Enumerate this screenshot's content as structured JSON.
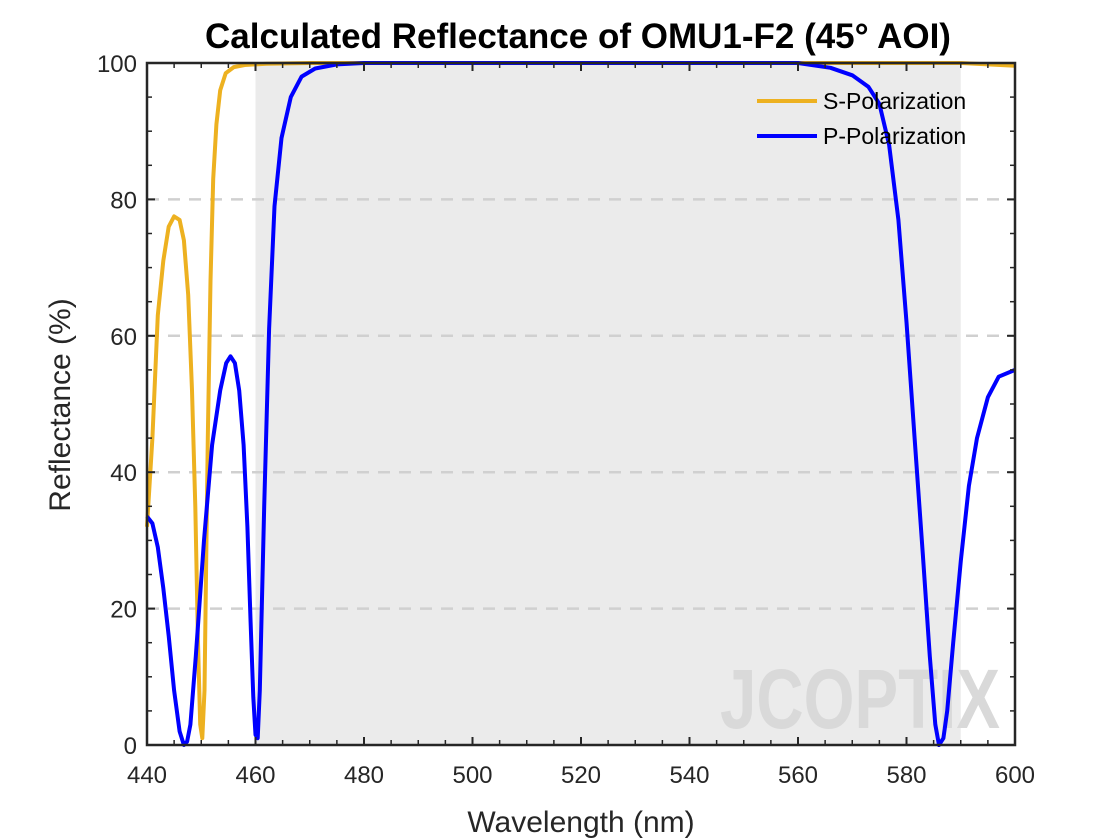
{
  "chart_data": {
    "type": "line",
    "title": "Calculated Reflectance of OMU1-F2 (45° AOI)",
    "xlabel": "Wavelength (nm)",
    "ylabel": "Reflectance (%)",
    "xlim": [
      440,
      600
    ],
    "ylim": [
      0,
      100
    ],
    "xticks": [
      440,
      460,
      480,
      500,
      520,
      540,
      560,
      580,
      600
    ],
    "yticks": [
      0,
      20,
      40,
      60,
      80,
      100
    ],
    "grid": "horizontal-dashed",
    "highlight_band": [
      460,
      590
    ],
    "legend_position": "top-right",
    "watermark": "JCOPTIX",
    "series": [
      {
        "name": "S-Polarization",
        "color": "#EDB120",
        "points": [
          [
            440,
            32
          ],
          [
            441,
            45
          ],
          [
            442,
            63
          ],
          [
            443,
            71
          ],
          [
            444,
            76
          ],
          [
            445,
            77.5
          ],
          [
            446,
            77
          ],
          [
            446.8,
            74
          ],
          [
            447.6,
            66
          ],
          [
            448.3,
            52
          ],
          [
            448.9,
            35
          ],
          [
            449.4,
            15
          ],
          [
            449.8,
            3
          ],
          [
            450.2,
            1
          ],
          [
            450.6,
            8
          ],
          [
            451.2,
            45
          ],
          [
            451.7,
            68
          ],
          [
            452.2,
            83
          ],
          [
            452.8,
            91
          ],
          [
            453.5,
            96
          ],
          [
            454.5,
            98.5
          ],
          [
            456,
            99.4
          ],
          [
            458,
            99.7
          ],
          [
            462,
            99.9
          ],
          [
            470,
            100
          ],
          [
            500,
            100
          ],
          [
            560,
            100
          ],
          [
            590,
            100
          ],
          [
            600,
            99.6
          ]
        ]
      },
      {
        "name": "P-Polarization",
        "color": "#0000FF",
        "points": [
          [
            440,
            33.5
          ],
          [
            441,
            32.5
          ],
          [
            442,
            29
          ],
          [
            443,
            23
          ],
          [
            444,
            16
          ],
          [
            445,
            8
          ],
          [
            446,
            2
          ],
          [
            446.8,
            0
          ],
          [
            447.4,
            0.5
          ],
          [
            448,
            3
          ],
          [
            449,
            13
          ],
          [
            450.5,
            30
          ],
          [
            452,
            44
          ],
          [
            453.5,
            52
          ],
          [
            454.6,
            56
          ],
          [
            455.4,
            57
          ],
          [
            456.2,
            56
          ],
          [
            457,
            52
          ],
          [
            457.8,
            44
          ],
          [
            458.5,
            32
          ],
          [
            459.1,
            18
          ],
          [
            459.6,
            7
          ],
          [
            460,
            1.5
          ],
          [
            460.4,
            1
          ],
          [
            460.8,
            8
          ],
          [
            461.6,
            35
          ],
          [
            462.5,
            61
          ],
          [
            463.5,
            79
          ],
          [
            464.8,
            89
          ],
          [
            466.5,
            95
          ],
          [
            468.5,
            98
          ],
          [
            471,
            99.2
          ],
          [
            475,
            99.8
          ],
          [
            480,
            100
          ],
          [
            560,
            100
          ],
          [
            566,
            99.3
          ],
          [
            570,
            98.2
          ],
          [
            573,
            96.5
          ],
          [
            575,
            94
          ],
          [
            576.8,
            88
          ],
          [
            578.5,
            77
          ],
          [
            580,
            62
          ],
          [
            581.5,
            45
          ],
          [
            583,
            28
          ],
          [
            584.3,
            13
          ],
          [
            585.3,
            3
          ],
          [
            586,
            0
          ],
          [
            586.8,
            1
          ],
          [
            587.5,
            5
          ],
          [
            588.6,
            15
          ],
          [
            590,
            27
          ],
          [
            591.5,
            38
          ],
          [
            593,
            45
          ],
          [
            595,
            51
          ],
          [
            597,
            54
          ],
          [
            600,
            55
          ]
        ]
      }
    ]
  }
}
